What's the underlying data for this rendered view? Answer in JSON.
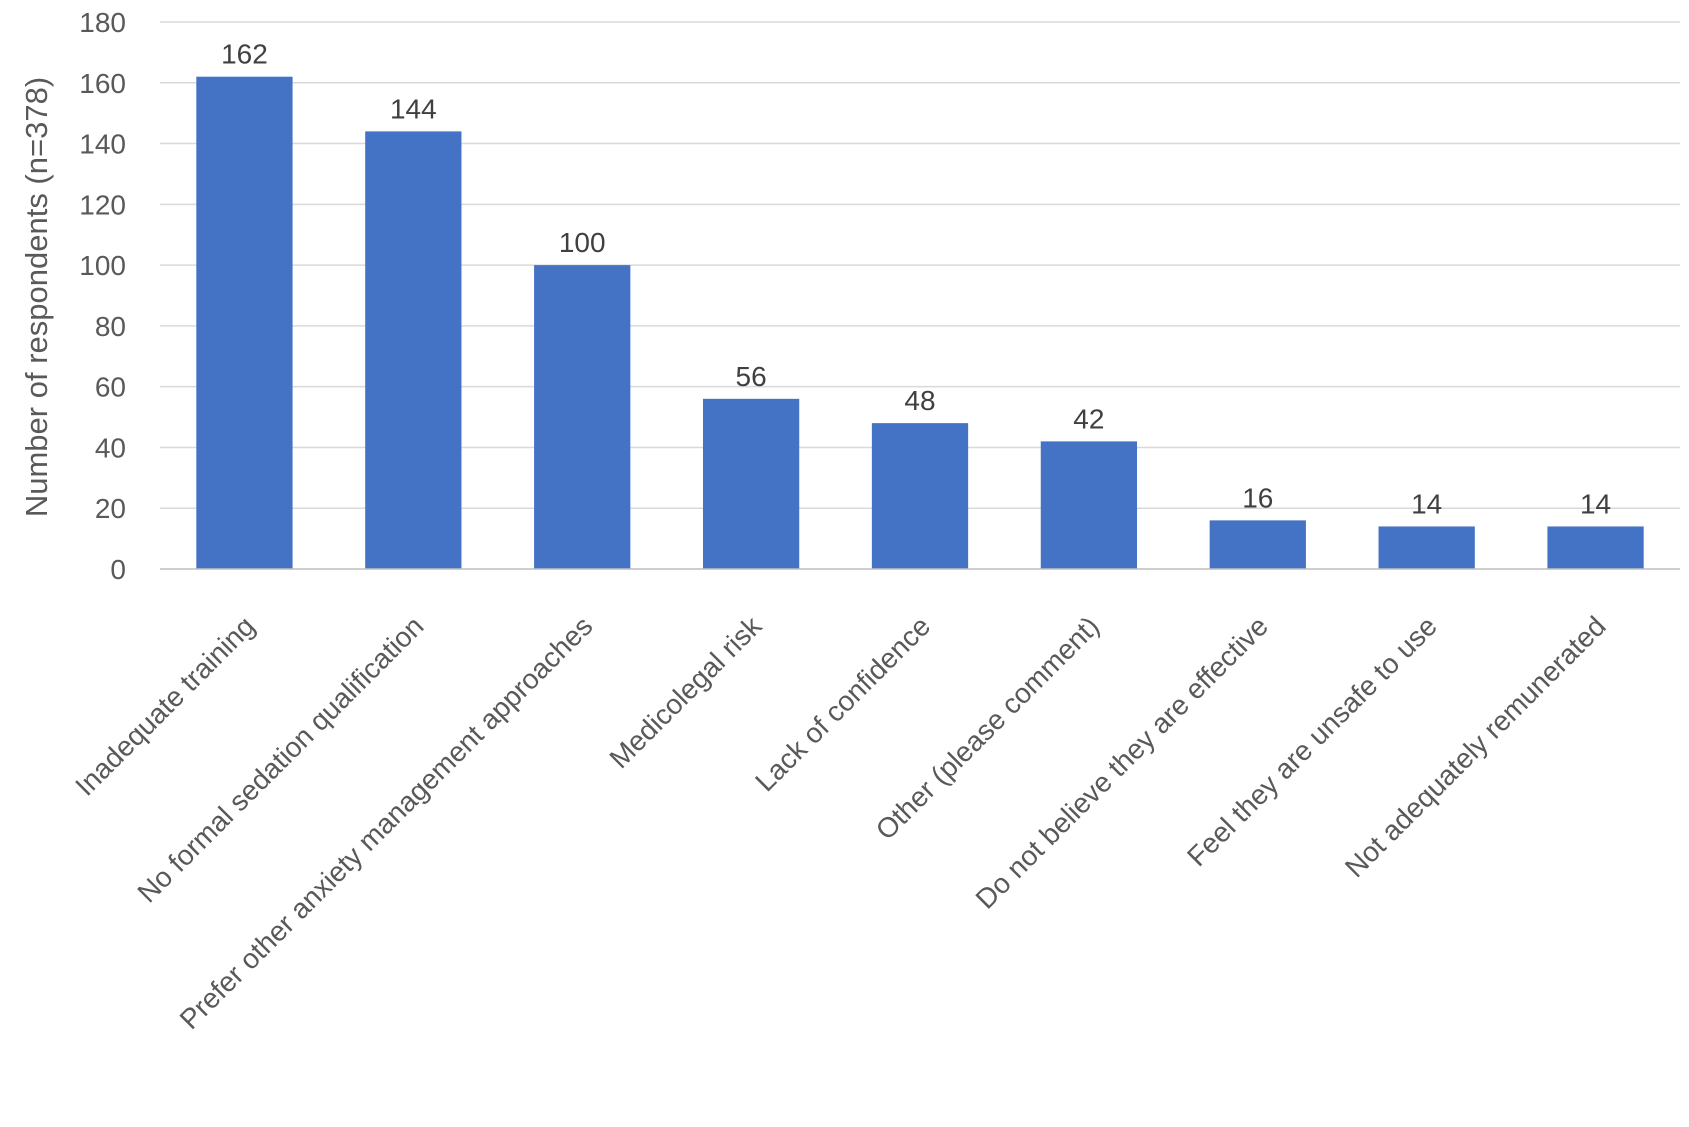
{
  "chart_data": {
    "type": "bar",
    "title": "",
    "xlabel": "",
    "ylabel": "Number of respondents (n=378)",
    "ylim": [
      0,
      180
    ],
    "ytick_step": 20,
    "grid": true,
    "bar_color": "#4472c4",
    "categories": [
      "Inadequate training",
      "No formal sedation qualification",
      "Prefer other anxiety management approaches",
      "Medicolegal risk",
      "Lack of confidence",
      "Other (please comment)",
      "Do not believe they are effective",
      "Feel they are unsafe to use",
      "Not adequately remunerated"
    ],
    "values": [
      162,
      144,
      100,
      56,
      48,
      42,
      16,
      14,
      14
    ]
  }
}
